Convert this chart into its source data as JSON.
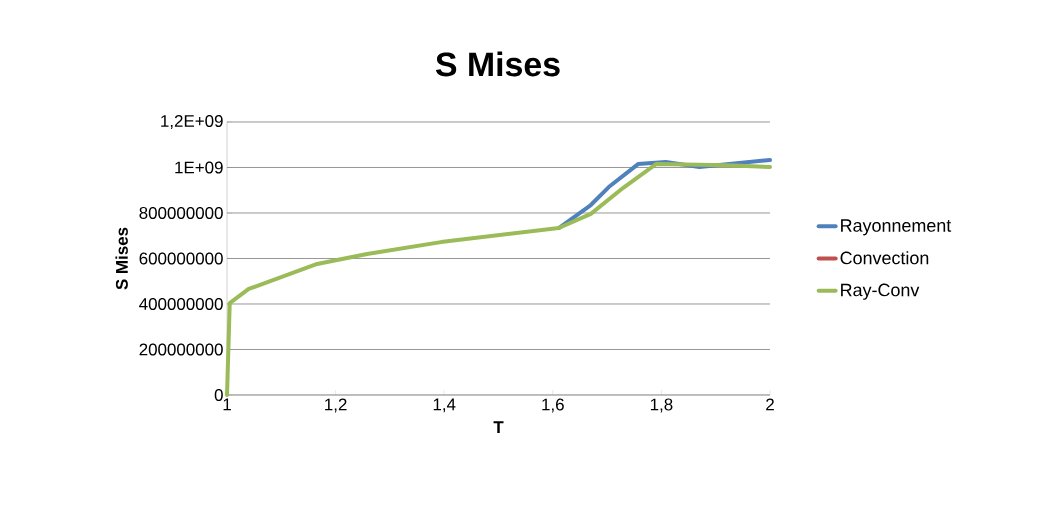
{
  "chart_data": {
    "type": "line",
    "title": "S Mises",
    "xlabel": "T",
    "ylabel": "S Mises",
    "xlim": [
      1,
      2
    ],
    "xticks": [
      1,
      {
        "value": 1.2,
        "label": "1,2"
      },
      {
        "value": 1.4,
        "label": "1,4"
      },
      {
        "value": 1.6,
        "label": "1,6"
      },
      {
        "value": 1.8,
        "label": "1,8"
      },
      2
    ],
    "ylim": [
      0,
      1200000000
    ],
    "yticks": [
      0,
      200000000,
      400000000,
      600000000,
      800000000,
      {
        "value": 1000000000,
        "label": "1E+09"
      },
      {
        "value": 1200000000,
        "label": "1,2E+09"
      }
    ],
    "grid": "y",
    "legend": "right",
    "marker": "none",
    "line_style": "solid",
    "series": [
      {
        "name": "Rayonnement",
        "color": "#4f81bd",
        "x": [
          1.611,
          1.67,
          1.703,
          1.757,
          1.808,
          1.87,
          2
        ],
        "values": [
          734000000,
          835000000,
          914000000,
          1015000000,
          1024000000,
          1002000000,
          1033000000
        ]
      },
      {
        "name": "Convection",
        "color": "#c0504d"
      },
      {
        "name": "Ray-Conv",
        "color": "#9bbb59",
        "x": [
          1,
          1.005,
          1.04,
          1.166,
          1.258,
          1.394,
          1.611,
          1.67,
          1.724,
          1.79,
          1.92,
          2
        ],
        "values": [
          0,
          404000000,
          466000000,
          576000000,
          620000000,
          672000000,
          734000000,
          796000000,
          900000000,
          1015000000,
          1010000000,
          1002000000
        ]
      }
    ]
  }
}
